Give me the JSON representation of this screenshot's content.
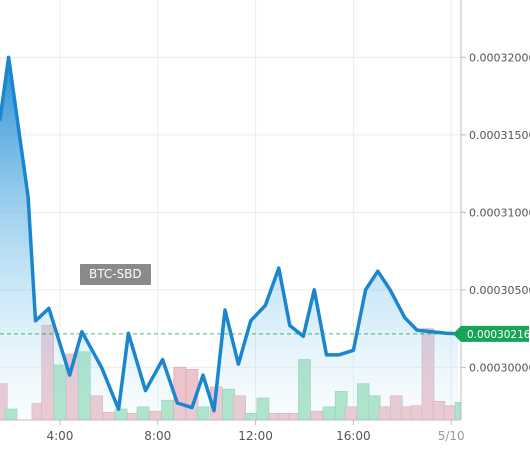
{
  "chart_data": {
    "type": "area",
    "pair_label": "BTC-SBD",
    "y_ticks": [
      "0.00030000",
      "0.00030500",
      "0.00031000",
      "0.00031500",
      "0.00032000"
    ],
    "y_tick_values": [
      0.0003,
      0.000305,
      0.00031,
      0.000315,
      0.00032
    ],
    "ylim": [
      0.0002966,
      0.0003237
    ],
    "x_ticks": [
      "4:00",
      "8:00",
      "12:00",
      "16:00",
      "5/10"
    ],
    "x_tick_values": [
      4,
      8,
      12,
      16,
      20
    ],
    "xlim": [
      1.55,
      20.4
    ],
    "last_price_label": "0.00030216",
    "last_price": 0.00030216,
    "colors": {
      "line": "#1a86d0",
      "fill_top": "#1a86d0",
      "last_tag": "#18a456",
      "vol_up": "#a8e2c4",
      "vol_down": "#edc4cc"
    },
    "series": [
      {
        "values": [
          [
            1.55,
            0.000316
          ],
          [
            1.9,
            0.00032
          ],
          [
            2.7,
            0.000311
          ],
          [
            3.0,
            0.000303
          ],
          [
            3.55,
            0.0003038
          ],
          [
            4.4,
            0.0002995
          ],
          [
            4.9,
            0.0003023
          ],
          [
            5.7,
            0.0003
          ],
          [
            6.4,
            0.0002973
          ],
          [
            6.8,
            0.0003022
          ],
          [
            7.5,
            0.0002985
          ],
          [
            8.2,
            0.0003005
          ],
          [
            8.8,
            0.0002977
          ],
          [
            9.4,
            0.0002974
          ],
          [
            9.85,
            0.0002995
          ],
          [
            10.3,
            0.0002972
          ],
          [
            10.75,
            0.0003037
          ],
          [
            11.3,
            0.0003002
          ],
          [
            11.8,
            0.000303
          ],
          [
            12.4,
            0.000304
          ],
          [
            12.95,
            0.0003064
          ],
          [
            13.4,
            0.0003027
          ],
          [
            13.95,
            0.000302
          ],
          [
            14.4,
            0.000305
          ],
          [
            14.9,
            0.0003008
          ],
          [
            15.4,
            0.0003008
          ],
          [
            16.0,
            0.0003011
          ],
          [
            16.5,
            0.000305
          ],
          [
            17.0,
            0.0003062
          ],
          [
            17.5,
            0.000305
          ],
          [
            18.1,
            0.0003032
          ],
          [
            18.6,
            0.0003024
          ],
          [
            19.2,
            0.0003023
          ],
          [
            19.8,
            0.0003022
          ],
          [
            20.3,
            0.00030216
          ]
        ]
      }
    ],
    "volume": [
      {
        "x": 1.6,
        "v": 0.33,
        "up": false
      },
      {
        "x": 2.0,
        "v": 0.1,
        "up": true
      },
      {
        "x": 3.1,
        "v": 0.15,
        "up": false
      },
      {
        "x": 3.5,
        "v": 0.86,
        "up": false
      },
      {
        "x": 4.0,
        "v": 0.5,
        "up": true
      },
      {
        "x": 4.5,
        "v": 0.6,
        "up": false
      },
      {
        "x": 5.0,
        "v": 0.62,
        "up": true
      },
      {
        "x": 5.5,
        "v": 0.22,
        "up": false
      },
      {
        "x": 6.0,
        "v": 0.07,
        "up": false
      },
      {
        "x": 6.5,
        "v": 0.1,
        "up": true
      },
      {
        "x": 7.0,
        "v": 0.06,
        "up": false
      },
      {
        "x": 7.4,
        "v": 0.12,
        "up": true
      },
      {
        "x": 7.9,
        "v": 0.08,
        "up": false
      },
      {
        "x": 8.4,
        "v": 0.18,
        "up": true
      },
      {
        "x": 8.9,
        "v": 0.48,
        "up": false
      },
      {
        "x": 9.4,
        "v": 0.46,
        "up": false
      },
      {
        "x": 9.85,
        "v": 0.12,
        "up": true
      },
      {
        "x": 10.4,
        "v": 0.3,
        "up": false
      },
      {
        "x": 10.9,
        "v": 0.28,
        "up": true
      },
      {
        "x": 11.35,
        "v": 0.22,
        "up": false
      },
      {
        "x": 11.8,
        "v": 0.06,
        "up": true
      },
      {
        "x": 12.3,
        "v": 0.2,
        "up": true
      },
      {
        "x": 12.8,
        "v": 0.06,
        "up": false
      },
      {
        "x": 13.2,
        "v": 0.06,
        "up": false
      },
      {
        "x": 13.6,
        "v": 0.06,
        "up": false
      },
      {
        "x": 14.0,
        "v": 0.55,
        "up": true
      },
      {
        "x": 14.5,
        "v": 0.08,
        "up": false
      },
      {
        "x": 15.0,
        "v": 0.12,
        "up": true
      },
      {
        "x": 15.5,
        "v": 0.26,
        "up": true
      },
      {
        "x": 15.9,
        "v": 0.12,
        "up": false
      },
      {
        "x": 16.4,
        "v": 0.33,
        "up": true
      },
      {
        "x": 16.85,
        "v": 0.22,
        "up": true
      },
      {
        "x": 17.3,
        "v": 0.12,
        "up": false
      },
      {
        "x": 17.75,
        "v": 0.22,
        "up": false
      },
      {
        "x": 18.2,
        "v": 0.12,
        "up": false
      },
      {
        "x": 18.6,
        "v": 0.13,
        "up": false
      },
      {
        "x": 19.05,
        "v": 0.83,
        "up": false
      },
      {
        "x": 19.5,
        "v": 0.17,
        "up": false
      },
      {
        "x": 19.95,
        "v": 0.13,
        "up": false
      },
      {
        "x": 20.4,
        "v": 0.16,
        "up": true
      }
    ],
    "grid": true,
    "legend": "none"
  }
}
